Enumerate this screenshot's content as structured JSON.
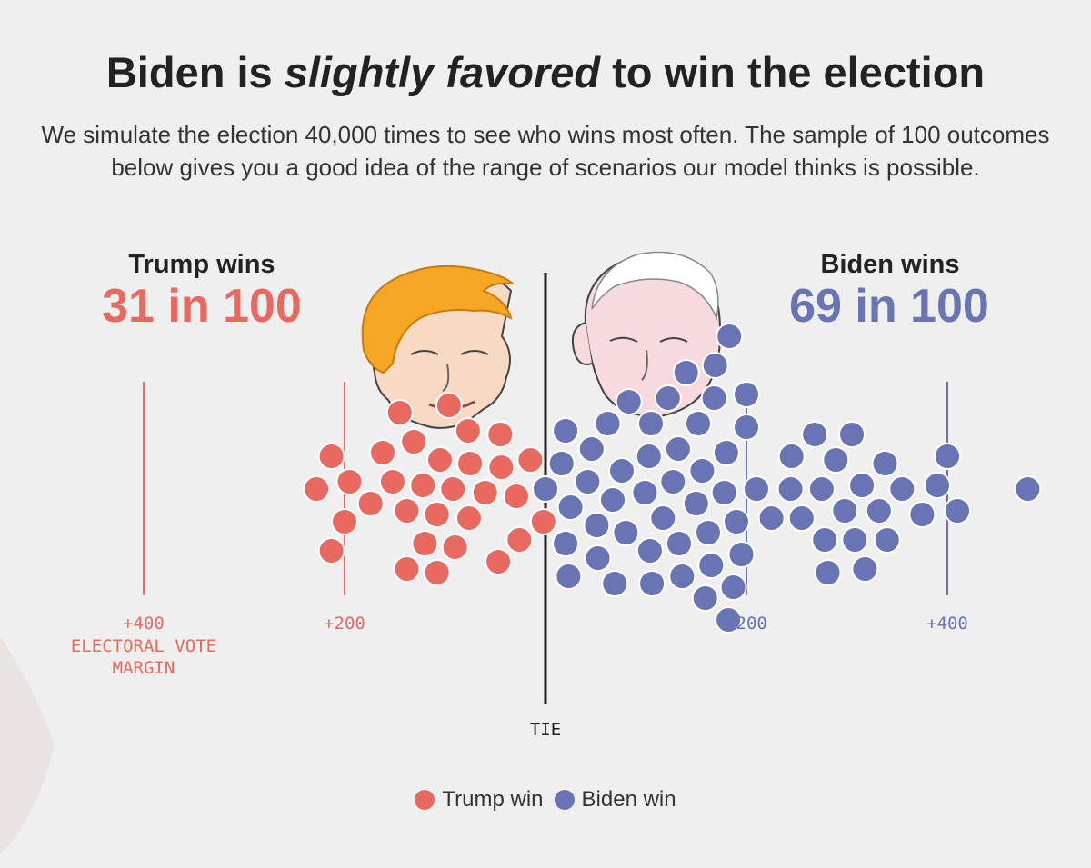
{
  "header": {
    "title_pre": "Biden is ",
    "title_em": "slightly favored",
    "title_post": " to win the election",
    "subtitle": "We simulate the election 40,000 times to see who wins most often. The sample of 100 outcomes below gives you a good idea of the range of scenarios our model thinks is possible."
  },
  "colors": {
    "trump": "#e8695f",
    "biden": "#6874b3",
    "text": "#222222",
    "background": "#efefef"
  },
  "trump_summary": {
    "label": "Trump wins",
    "count": "31 in 100"
  },
  "biden_summary": {
    "label": "Biden wins",
    "count": "69 in 100"
  },
  "legend": {
    "trump": "Trump win",
    "biden": "Biden win"
  },
  "chart_data": {
    "type": "scatter",
    "subtype": "dot-swarm",
    "title": "Biden is slightly favored to win the election",
    "xlabel": "ELECTORAL VOTE MARGIN",
    "tie_label": "TIE",
    "x_range": [
      -400,
      480
    ],
    "ticks": [
      {
        "value": -400,
        "label": "+400",
        "side": "trump"
      },
      {
        "value": -200,
        "label": "+200",
        "side": "trump"
      },
      {
        "value": 200,
        "label": "+200",
        "side": "biden"
      },
      {
        "value": 400,
        "label": "+400",
        "side": "biden"
      }
    ],
    "totals": {
      "trump": 31,
      "biden": 69
    },
    "series": [
      {
        "name": "Trump win",
        "count": 31,
        "margins": [
          -228,
          -213,
          -213,
          -200,
          -195,
          -174,
          -162,
          -152,
          -145,
          -138,
          -138,
          -131,
          -122,
          -120,
          -108,
          -108,
          -105,
          -96,
          -92,
          -90,
          -76,
          -77,
          -75,
          -60,
          -47,
          -45,
          -44,
          -29,
          -26,
          -15,
          -2
        ]
      },
      {
        "name": "Biden win",
        "count": 69,
        "margins": [
          0,
          16,
          20,
          20,
          23,
          25,
          42,
          46,
          51,
          52,
          62,
          67,
          69,
          76,
          80,
          83,
          99,
          103,
          104,
          105,
          106,
          117,
          122,
          127,
          132,
          133,
          136,
          140,
          150,
          152,
          156,
          159,
          162,
          165,
          168,
          169,
          178,
          180,
          182,
          183,
          187,
          190,
          195,
          200,
          200,
          210,
          225,
          244,
          245,
          255,
          268,
          275,
          278,
          281,
          289,
          298,
          305,
          308,
          315,
          318,
          332,
          338,
          340,
          355,
          375,
          390,
          400,
          410,
          480
        ]
      }
    ]
  }
}
